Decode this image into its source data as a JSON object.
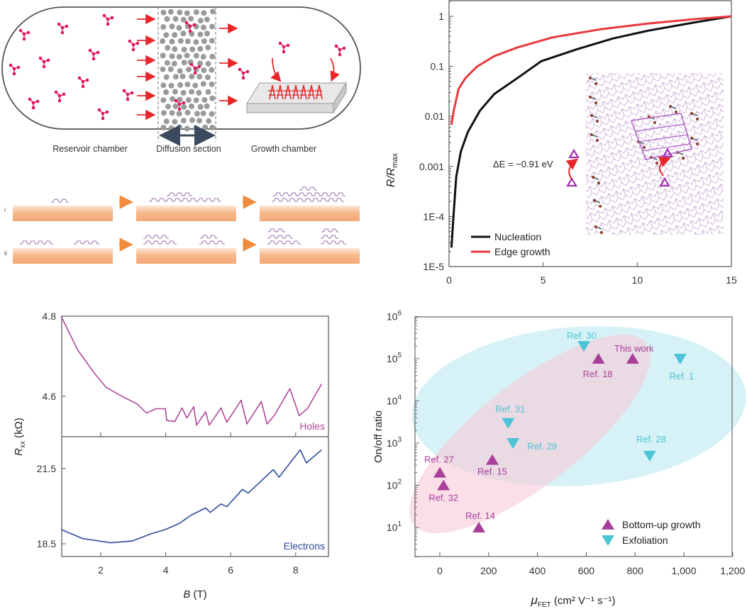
{
  "schematic": {
    "reservoir_label": "Reservoir chamber",
    "diffusion_label": "Diffusion section",
    "growth_label": "Growth chamber",
    "row_labels": [
      "i",
      "ii"
    ]
  },
  "colors": {
    "molecule": "#e0175b",
    "arrow_red": "#e8262a",
    "arrow_orange": "#f08a3c",
    "substrate": "#f7b98c",
    "layer": "#9b72b3",
    "nucleation": "#111111",
    "edge_growth": "#e8383d",
    "holes": "#b0479a",
    "electrons": "#2f4b9c",
    "bottom_up": "#a8409a",
    "exfoliation": "#4cc3d6",
    "ellipse_pink": "#f7c9d9",
    "ellipse_cyan": "#c6ecf2"
  },
  "chart_data": [
    {
      "type": "line",
      "ylabel_main": "R/R",
      "ylabel_sub": "max",
      "xlim": [
        0,
        15
      ],
      "ylim": [
        1e-05,
        2.1
      ],
      "yscale": "log",
      "x_ticks": [
        "0",
        "5",
        "10",
        "15"
      ],
      "y_ticks": [
        "1",
        "0.1",
        "0.01",
        "0.001",
        "1E-4",
        "1E-5"
      ],
      "legend_placement": "bottom-left",
      "annotation": "ΔE = −0.91 eV",
      "series": [
        {
          "name": "Nucleation",
          "x": [
            0.13,
            0.25,
            0.38,
            0.63,
            1.0,
            1.64,
            2.4,
            3.65,
            4.9,
            6.8,
            8.7,
            10.6,
            13.1,
            15
          ],
          "y": [
            2.4e-05,
            0.00012,
            0.00062,
            0.002,
            0.0049,
            0.013,
            0.028,
            0.059,
            0.127,
            0.22,
            0.36,
            0.52,
            0.76,
            1
          ]
        },
        {
          "name": "Edge growth",
          "x": [
            0.13,
            0.25,
            0.5,
            0.88,
            1.5,
            2.4,
            3.65,
            5.5,
            8.05,
            10.6,
            13.1,
            15
          ],
          "y": [
            0.0068,
            0.013,
            0.035,
            0.059,
            0.1,
            0.16,
            0.24,
            0.38,
            0.55,
            0.72,
            0.88,
            1
          ]
        }
      ]
    },
    {
      "type": "line",
      "xlabel_main": "B",
      "xlabel_unit": " (T)",
      "ylabel_main": "R",
      "ylabel_sub": "xx",
      "ylabel_unit": " (kΩ)",
      "xlim": [
        0.8,
        9.0
      ],
      "x_ticks": [
        "2",
        "4",
        "6",
        "8"
      ],
      "panels": [
        {
          "name": "Holes",
          "ylim": [
            4.5,
            4.8
          ],
          "y_ticks": [
            "4.8",
            "4.6"
          ],
          "x": [
            0.78,
            1.29,
            1.8,
            2.17,
            2.68,
            3.12,
            3.41,
            3.7,
            3.99,
            4.03,
            4.28,
            4.5,
            4.65,
            4.86,
            4.95,
            5.23,
            5.34,
            5.7,
            5.88,
            6.32,
            6.5,
            6.94,
            7.12,
            7.34,
            7.82,
            8.11,
            8.36,
            8.8
          ],
          "y": [
            4.8,
            4.716,
            4.658,
            4.622,
            4.599,
            4.581,
            4.558,
            4.569,
            4.569,
            4.54,
            4.537,
            4.571,
            4.546,
            4.574,
            4.528,
            4.561,
            4.528,
            4.571,
            4.535,
            4.59,
            4.531,
            4.587,
            4.531,
            4.552,
            4.619,
            4.552,
            4.569,
            4.631
          ]
        },
        {
          "name": "Electrons",
          "ylim": [
            18.0,
            22.8
          ],
          "y_ticks": [
            "21.5",
            "18.5"
          ],
          "x": [
            0.78,
            1.44,
            2.31,
            2.97,
            3.55,
            3.99,
            4.43,
            4.79,
            5.23,
            5.37,
            5.7,
            5.88,
            6.36,
            6.54,
            7.31,
            7.49,
            8.14,
            8.33,
            8.8
          ],
          "y": [
            19.07,
            18.71,
            18.54,
            18.61,
            18.9,
            19.07,
            19.32,
            19.65,
            19.93,
            19.75,
            20.09,
            19.98,
            20.67,
            20.52,
            21.46,
            21.16,
            22.25,
            21.73,
            22.25
          ]
        }
      ]
    },
    {
      "type": "scatter",
      "xlabel_main": "μ",
      "xlabel_sub": "FET",
      "xlabel_unit": " (cm² V⁻¹ s⁻¹)",
      "ylabel": "On/off ratio",
      "xlim": [
        -100,
        1200
      ],
      "ylim": [
        2,
        1000000
      ],
      "yscale": "log",
      "x_ticks": [
        "0",
        "200",
        "400",
        "600",
        "800",
        "1,000",
        "1,200"
      ],
      "y_tick_base": "10",
      "y_tick_exponents": [
        "1",
        "2",
        "3",
        "4",
        "5",
        "6"
      ],
      "legend_placement": "bottom-right",
      "series": [
        {
          "name": "Bottom-up growth",
          "marker": "triangle-up",
          "points": [
            {
              "label": "This work",
              "x": 790,
              "y": 100000
            },
            {
              "label": "Ref. 18",
              "x": 650,
              "y": 100000
            },
            {
              "label": "Ref. 15",
              "x": 215,
              "y": 400
            },
            {
              "label": "Ref. 27",
              "x": 0,
              "y": 200
            },
            {
              "label": "Ref. 32",
              "x": 15,
              "y": 100
            },
            {
              "label": "Ref. 14",
              "x": 160,
              "y": 10
            }
          ]
        },
        {
          "name": "Exfoliation",
          "marker": "triangle-down",
          "points": [
            {
              "label": "Ref. 30",
              "x": 590,
              "y": 200000
            },
            {
              "label": "Ref. 1",
              "x": 985,
              "y": 100000
            },
            {
              "label": "Ref. 31",
              "x": 280,
              "y": 3000
            },
            {
              "label": "Ref. 29",
              "x": 300,
              "y": 1000
            },
            {
              "label": "Ref. 28",
              "x": 860,
              "y": 500
            }
          ]
        }
      ]
    }
  ]
}
